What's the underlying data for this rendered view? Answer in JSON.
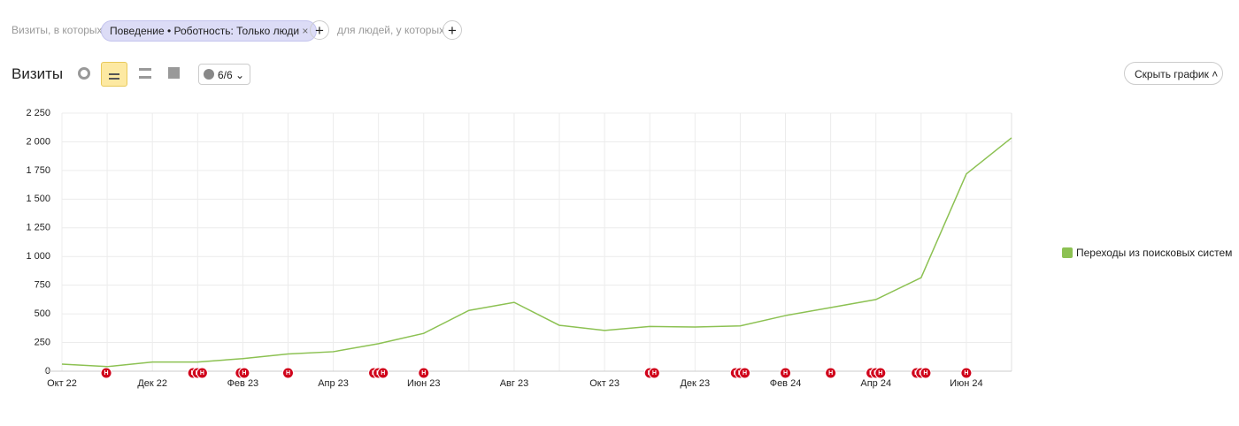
{
  "filter": {
    "prefix": "Визиты, в которых",
    "chip": "Поведение • Роботность: Только люди",
    "suffix": "для людей, у которых"
  },
  "toolbar": {
    "title": "Визиты",
    "counter": "6/6",
    "hide_button": "Скрыть график"
  },
  "chart_data": {
    "type": "line",
    "categories": [
      "Окт 22",
      null,
      "Дек 22",
      null,
      "Фев 23",
      null,
      "Апр 23",
      null,
      "Июн 23",
      null,
      "Авг 23",
      null,
      "Окт 23",
      null,
      "Дек 23",
      null,
      "Фев 24",
      null,
      "Апр 24",
      null,
      "Июн 24",
      null
    ],
    "series": [
      {
        "name": "Переходы из поисковых систем",
        "color": "#8cc152",
        "values": [
          62,
          40,
          80,
          80,
          110,
          150,
          170,
          240,
          330,
          530,
          600,
          400,
          355,
          390,
          385,
          395,
          485,
          555,
          625,
          815,
          1720,
          2035
        ]
      }
    ],
    "ylim": [
      0,
      2250
    ],
    "yticks": [
      0,
      250,
      500,
      750,
      {
        "value": 1000,
        "label": "1 000"
      },
      {
        "value": 1250,
        "label": "1 250"
      },
      {
        "value": 1500,
        "label": "1 500"
      },
      {
        "value": 1750,
        "label": "1 750"
      },
      {
        "value": 2000,
        "label": "2 000"
      },
      {
        "value": 2250,
        "label": "2 250"
      }
    ],
    "grid": true,
    "notes": [
      {
        "x": 0.98,
        "label": "Н"
      },
      {
        "x": 2.9,
        "label": "Н"
      },
      {
        "x": 3.0,
        "label": "Н"
      },
      {
        "x": 3.1,
        "label": "Н"
      },
      {
        "x": 3.95,
        "label": "Н"
      },
      {
        "x": 4.03,
        "label": "Н"
      },
      {
        "x": 5.0,
        "label": "Н"
      },
      {
        "x": 6.9,
        "label": "Н"
      },
      {
        "x": 7.0,
        "label": "Н"
      },
      {
        "x": 7.1,
        "label": "Н"
      },
      {
        "x": 8.0,
        "label": "Н"
      },
      {
        "x": 13.0,
        "label": "Н"
      },
      {
        "x": 13.1,
        "label": "Н"
      },
      {
        "x": 14.9,
        "label": "Н"
      },
      {
        "x": 15.0,
        "label": "Н"
      },
      {
        "x": 15.1,
        "label": "Н"
      },
      {
        "x": 16.0,
        "label": "Н"
      },
      {
        "x": 17.0,
        "label": "Н"
      },
      {
        "x": 17.9,
        "label": "Н"
      },
      {
        "x": 18.0,
        "label": "Н"
      },
      {
        "x": 18.1,
        "label": "Н"
      },
      {
        "x": 18.9,
        "label": "Н"
      },
      {
        "x": 19.0,
        "label": "Н"
      },
      {
        "x": 19.1,
        "label": "Н"
      },
      {
        "x": 20.0,
        "label": "Н"
      }
    ]
  }
}
